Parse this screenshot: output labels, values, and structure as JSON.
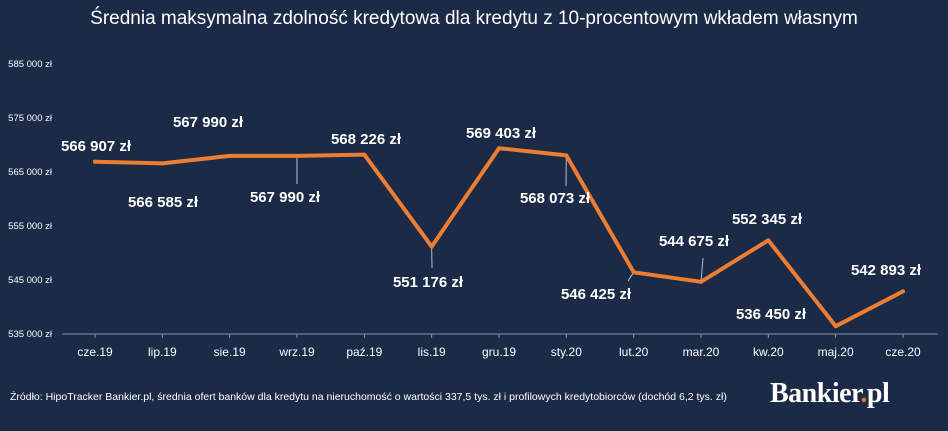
{
  "chart_data": {
    "type": "line",
    "title": "Średnia maksymalna zdolność kredytowa dla kredytu z 10-procentowym wkładem własnym",
    "categories": [
      "cze.19",
      "lip.19",
      "sie.19",
      "wrz.19",
      "paź.19",
      "lis.19",
      "gru.19",
      "sty.20",
      "lut.20",
      "mar.20",
      "kw.20",
      "maj.20",
      "cze.20"
    ],
    "series": [
      {
        "values": [
          566907,
          566585,
          567990,
          567990,
          568226,
          551176,
          569403,
          568073,
          546425,
          544675,
          552345,
          536450,
          542893
        ]
      }
    ],
    "data_labels": [
      "566 907 zł",
      "566 585 zł",
      "567 990 zł",
      "567 990 zł",
      "568 226 zł",
      "551 176 zł",
      "569 403 zł",
      "568 073 zł",
      "546 425 zł",
      "544 675 zł",
      "552 345 zł",
      "536 450 zł",
      "542 893 zł"
    ],
    "y_ticks": [
      535000,
      545000,
      555000,
      565000,
      575000,
      585000
    ],
    "y_tick_labels": [
      "535 000 zł",
      "545 000 zł",
      "555 000 zł",
      "565 000 zł",
      "575 000 zł",
      "585 000 zł"
    ],
    "ylim": [
      535000,
      585000
    ],
    "xlabel": "",
    "ylabel": "",
    "grid": false,
    "legend": "none",
    "colors": {
      "background": "#1b2a47",
      "line": "#ed7d31",
      "text": "#ffffff",
      "axis": "#8a93a6"
    }
  },
  "footer": {
    "source": "Źródło: HipoTracker Bankier.pl, średnia ofert banków dla kredytu na nieruchomość o wartości 337,5 tys. zł i profilowych kredytobiorców (dochód 6,2 tys. zł)",
    "logo_text": "Bankier",
    "logo_dot": ".",
    "logo_suffix": "pl"
  }
}
